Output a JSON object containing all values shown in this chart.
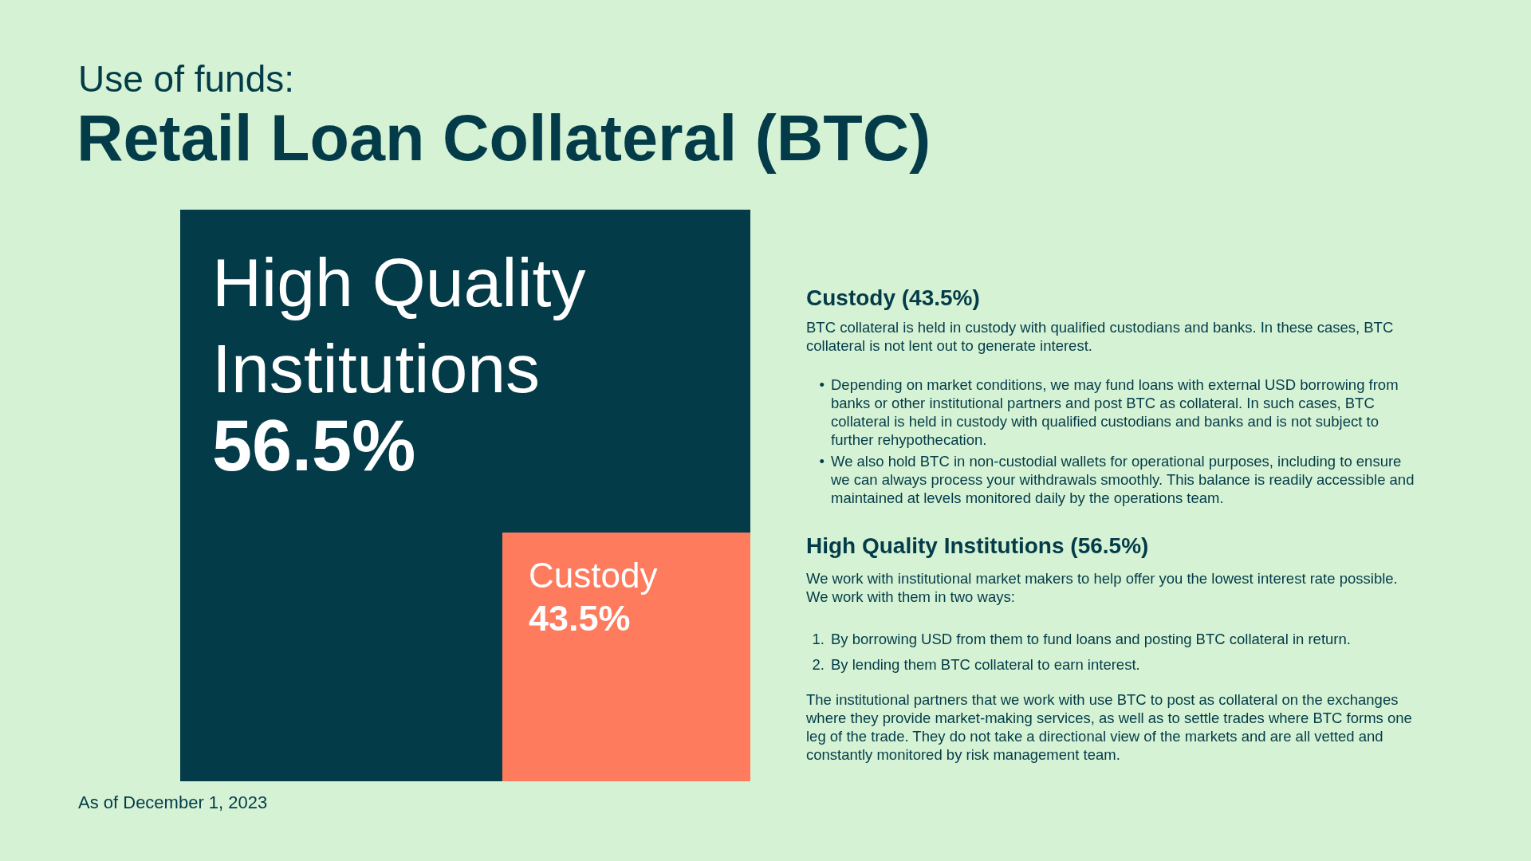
{
  "chart_data": {
    "type": "other",
    "subtitle": "Use of funds:",
    "title": "Retail Loan Collateral (BTC)",
    "categories": [
      "High Quality Institutions",
      "Custody"
    ],
    "values": [
      56.5,
      43.5
    ],
    "value_labels": [
      "56.5%",
      "43.5%"
    ],
    "colors": [
      "#033b48",
      "#fe7b5d"
    ],
    "annotations": [
      "Custody (43.5%)",
      "BTC collateral is held in custody with qualified custodians and banks. In these cases, BTC collateral is not lent out to generate interest.",
      "• Depending on market conditions, we may fund loans with external USD borrowing from banks or other institutional partners and post BTC as collateral. In such cases, BTC collateral is held in custody with qualified custodians and banks and is not subject to further rehypothecation.",
      "• We also hold BTC in non-custodial wallets for operational purposes, including to ensure we can always process your withdrawals smoothly. This balance is readily accessible and maintained at levels monitored daily by the operations team.",
      "High Quality Institutions (56.5%)",
      "We work with institutional market makers to help offer you the lowest interest rate possible. We work with them in two ways:",
      "1. By borrowing USD from them to fund loans and posting BTC collateral in return.",
      "2. By lending them BTC collateral to earn interest.",
      "The institutional partners that we work with use BTC to post as collateral on the exchanges where they provide market-making services, as well as to settle trades where BTC forms one leg of the trade. They do not take a directional view of the markets and are all vetted and constantly monitored by risk management team.",
      "As of December 1, 2023"
    ]
  }
}
